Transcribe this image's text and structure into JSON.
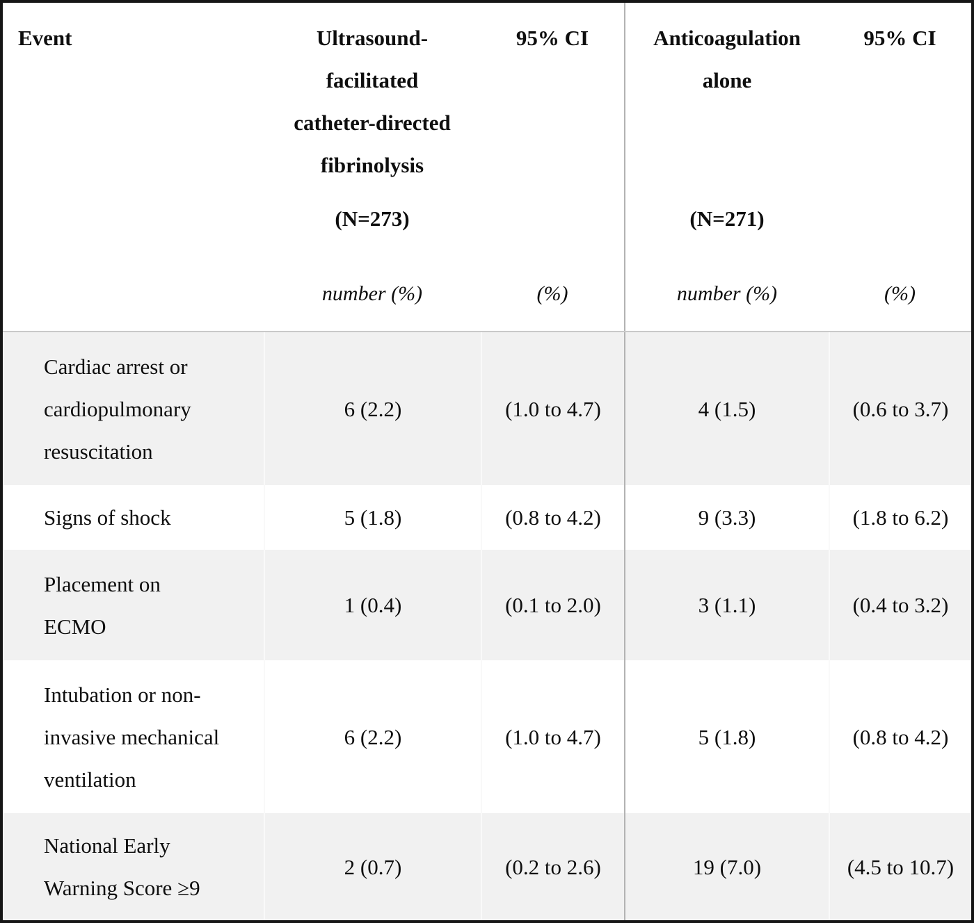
{
  "table": {
    "header": {
      "event_label": "Event",
      "group1": {
        "title_lines": [
          "Ultrasound-",
          "facilitated",
          "catheter-directed",
          "fibrinolysis"
        ],
        "n": "(N=273)",
        "unit": "number (%)"
      },
      "ci1": {
        "title": "95% CI",
        "unit": "(%)"
      },
      "group2": {
        "title_lines": [
          "Anticoagulation",
          "alone"
        ],
        "n": "(N=271)",
        "unit": "number (%)"
      },
      "ci2": {
        "title": "95% CI",
        "unit": "(%)"
      }
    },
    "rows": [
      {
        "event_lines": [
          "Cardiac arrest or",
          "cardiopulmonary",
          "resuscitation"
        ],
        "g1_n": "6 (2.2)",
        "g1_ci": "(1.0 to 4.7)",
        "g2_n": "4 (1.5)",
        "g2_ci": "(0.6 to 3.7)"
      },
      {
        "event_lines": [
          "Signs of shock"
        ],
        "g1_n": "5 (1.8)",
        "g1_ci": "(0.8 to 4.2)",
        "g2_n": "9 (3.3)",
        "g2_ci": "(1.8 to 6.2)"
      },
      {
        "event_lines": [
          "Placement on",
          "ECMO"
        ],
        "g1_n": "1 (0.4)",
        "g1_ci": "(0.1 to 2.0)",
        "g2_n": "3 (1.1)",
        "g2_ci": "(0.4 to 3.2)"
      },
      {
        "event_lines": [
          "Intubation or non-",
          "invasive mechanical",
          "ventilation"
        ],
        "g1_n": "6 (2.2)",
        "g1_ci": "(1.0 to 4.7)",
        "g2_n": "5 (1.8)",
        "g2_ci": "(0.8 to 4.2)"
      },
      {
        "event_lines": [
          "National Early",
          "Warning Score ≥9"
        ],
        "g1_n": "2 (0.7)",
        "g1_ci": "(0.2 to 2.6)",
        "g2_n": "19 (7.0)",
        "g2_ci": "(4.5 to 10.7)"
      }
    ],
    "colors": {
      "outer_border": "#161616",
      "row_stripe": "#f1f1f1",
      "header_rule": "#c9c9c9",
      "mid_divider": "#b3b3b3",
      "faint_divider": "#f9f9f9",
      "text": "#0e0e0e"
    }
  }
}
